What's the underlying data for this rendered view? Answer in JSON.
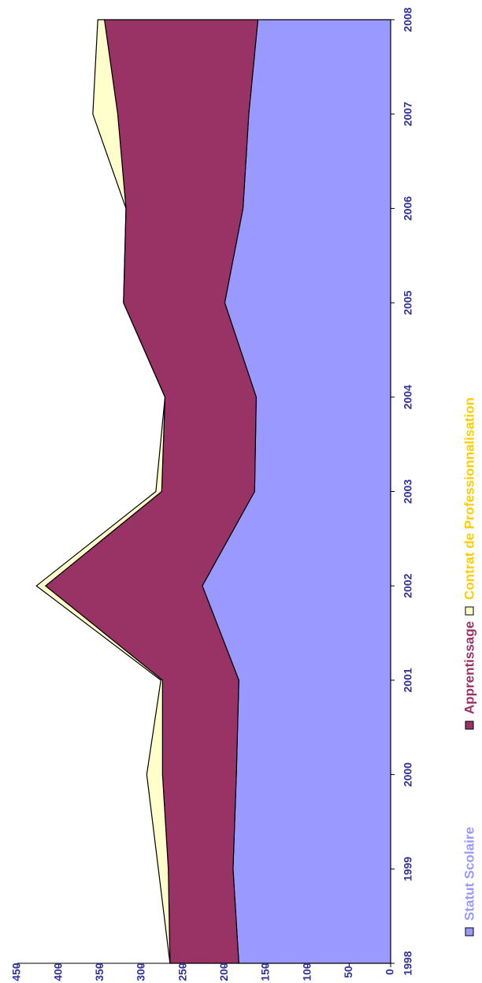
{
  "chart_data": {
    "type": "area",
    "stacked": true,
    "orientation": "rotated",
    "categories": [
      "1998",
      "1999",
      "2000",
      "2001",
      "2002",
      "2003",
      "2004",
      "2005",
      "2006",
      "2007",
      "2008"
    ],
    "series": [
      {
        "name": "Statut Scolaire",
        "color": "#9999ff",
        "label_color": "#9999ff",
        "values": [
          183,
          190,
          186,
          183,
          227,
          164,
          162,
          200,
          178,
          171,
          160
        ]
      },
      {
        "name": "Apprentissage",
        "color": "#993366",
        "label_color": "#993366",
        "values": [
          83,
          78,
          89,
          92,
          189,
          112,
          110,
          122,
          141,
          158,
          185
        ]
      },
      {
        "name": "Contrat de Professionnalisation",
        "color": "#ffffcc",
        "label_color": "#ffcc00",
        "values": [
          0,
          12,
          19,
          2,
          11,
          7,
          0,
          0,
          0,
          30,
          8
        ]
      }
    ],
    "ylim": [
      0,
      450
    ],
    "yticks": [
      0,
      50,
      100,
      150,
      200,
      250,
      300,
      350,
      400,
      450
    ]
  }
}
